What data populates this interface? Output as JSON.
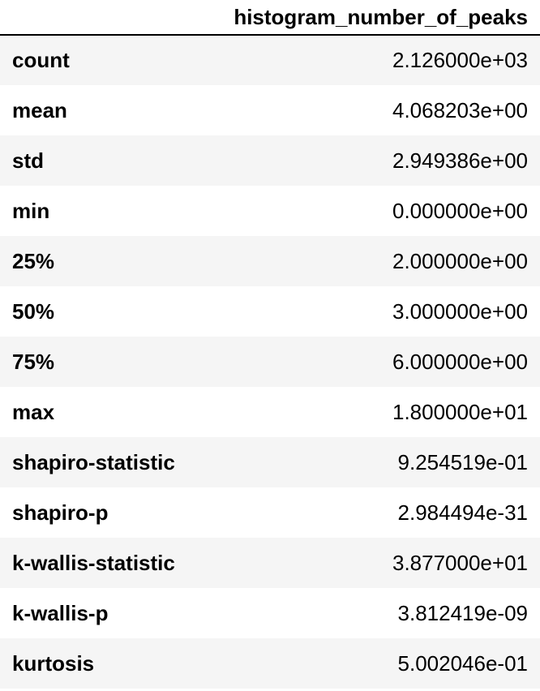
{
  "table": {
    "column_header": "histogram_number_of_peaks",
    "rows": [
      {
        "label": "count",
        "value": "2.126000e+03"
      },
      {
        "label": "mean",
        "value": "4.068203e+00"
      },
      {
        "label": "std",
        "value": "2.949386e+00"
      },
      {
        "label": "min",
        "value": "0.000000e+00"
      },
      {
        "label": "25%",
        "value": "2.000000e+00"
      },
      {
        "label": "50%",
        "value": "3.000000e+00"
      },
      {
        "label": "75%",
        "value": "6.000000e+00"
      },
      {
        "label": "max",
        "value": "1.800000e+01"
      },
      {
        "label": "shapiro-statistic",
        "value": "9.254519e-01"
      },
      {
        "label": "shapiro-p",
        "value": "2.984494e-31"
      },
      {
        "label": "k-wallis-statistic",
        "value": "3.877000e+01"
      },
      {
        "label": "k-wallis-p",
        "value": "3.812419e-09"
      },
      {
        "label": "kurtosis",
        "value": "5.002046e-01"
      }
    ]
  }
}
